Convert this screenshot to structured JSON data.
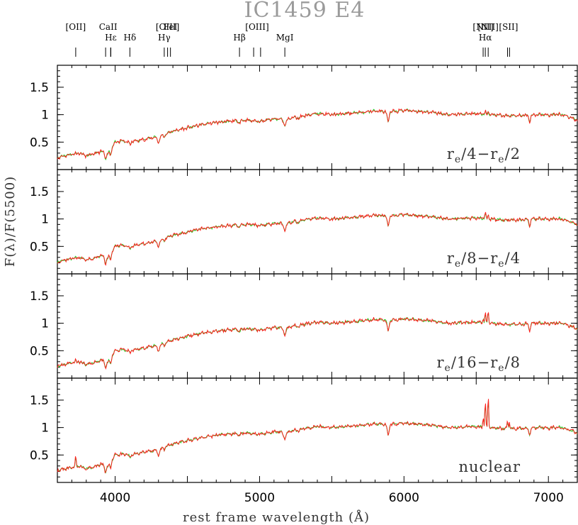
{
  "chart_data": {
    "type": "line",
    "title": "IC1459 E4",
    "xlabel": "rest frame wavelength (Å)",
    "ylabel": "F(λ)/F(5500)",
    "xlim": [
      3600,
      7200
    ],
    "ylim": [
      0,
      1.9
    ],
    "x_ticks": [
      4000,
      5000,
      6000,
      7000
    ],
    "y_ticks": [
      0.5,
      1,
      1.5
    ],
    "grid": false,
    "series_colors": {
      "observed": "#ff2020",
      "model": "#22cc22"
    },
    "line_markers": [
      {
        "label": "[OII]",
        "row": 0,
        "x": [
          3727
        ]
      },
      {
        "label": "CaII",
        "row": 0,
        "x": [
          3934,
          3969
        ]
      },
      {
        "label": "Hε",
        "row": 1,
        "x": [
          3970
        ]
      },
      {
        "label": "Hδ",
        "row": 1,
        "x": [
          4102
        ]
      },
      {
        "label": "[OIII]",
        "row": 0,
        "x": [
          4363
        ]
      },
      {
        "label": "FeI",
        "row": 0,
        "x": [
          4383
        ]
      },
      {
        "label": "Hγ",
        "row": 1,
        "x": [
          4340
        ]
      },
      {
        "label": "Hβ",
        "row": 1,
        "x": [
          4861
        ]
      },
      {
        "label": "[OIII]",
        "row": 0,
        "x": [
          4959,
          5007
        ]
      },
      {
        "label": "MgI",
        "row": 1,
        "x": [
          5175
        ]
      },
      {
        "label": "[NII]",
        "row": 0,
        "x": [
          6548
        ]
      },
      {
        "label": "Hα",
        "row": 1,
        "x": [
          6563
        ]
      },
      {
        "label": "[NII]",
        "row": 0,
        "x": [
          6583
        ]
      },
      {
        "label": "[SII]",
        "row": 0,
        "x": [
          6717,
          6731
        ]
      }
    ],
    "continuum": [
      [
        3600,
        0.22
      ],
      [
        3650,
        0.25
      ],
      [
        3700,
        0.28
      ],
      [
        3750,
        0.3
      ],
      [
        3800,
        0.25
      ],
      [
        3850,
        0.28
      ],
      [
        3900,
        0.33
      ],
      [
        3950,
        0.3
      ],
      [
        4000,
        0.5
      ],
      [
        4050,
        0.52
      ],
      [
        4100,
        0.5
      ],
      [
        4200,
        0.55
      ],
      [
        4300,
        0.6
      ],
      [
        4400,
        0.7
      ],
      [
        4500,
        0.76
      ],
      [
        4600,
        0.82
      ],
      [
        4700,
        0.86
      ],
      [
        4800,
        0.88
      ],
      [
        4900,
        0.9
      ],
      [
        5000,
        0.88
      ],
      [
        5100,
        0.92
      ],
      [
        5200,
        0.93
      ],
      [
        5300,
        0.98
      ],
      [
        5400,
        1.02
      ],
      [
        5500,
        1.0
      ],
      [
        5600,
        1.02
      ],
      [
        5700,
        1.04
      ],
      [
        5800,
        1.07
      ],
      [
        5900,
        1.05
      ],
      [
        6000,
        1.08
      ],
      [
        6100,
        1.06
      ],
      [
        6200,
        1.04
      ],
      [
        6300,
        1.0
      ],
      [
        6400,
        1.01
      ],
      [
        6500,
        1.02
      ],
      [
        6600,
        1.0
      ],
      [
        6700,
        0.98
      ],
      [
        6800,
        0.98
      ],
      [
        6900,
        1.0
      ],
      [
        7000,
        1.01
      ],
      [
        7100,
        1.0
      ],
      [
        7200,
        0.9
      ]
    ],
    "absorption": [
      [
        3934,
        0.12,
        6
      ],
      [
        3969,
        0.1,
        6
      ],
      [
        4102,
        0.04,
        6
      ],
      [
        4300,
        0.1,
        8
      ],
      [
        4340,
        0.04,
        6
      ],
      [
        4861,
        0.04,
        6
      ],
      [
        5175,
        0.12,
        10
      ],
      [
        5270,
        0.03,
        10
      ],
      [
        5890,
        0.2,
        6
      ],
      [
        6870,
        0.12,
        6
      ],
      [
        7000,
        0.02,
        20
      ]
    ],
    "panels": [
      {
        "label": "re/4–re/2",
        "sub_a": "r",
        "sub_b": "e",
        "mid": "/4−",
        "end": "/2",
        "emission": [
          [
            6563,
            0.08
          ],
          [
            6583,
            0.05
          ]
        ],
        "seed": 11
      },
      {
        "label": "re/8–re/4",
        "sub_a": "r",
        "sub_b": "e",
        "mid": "/8−",
        "end": "/4",
        "emission": [
          [
            6563,
            0.12
          ],
          [
            6583,
            0.08
          ]
        ],
        "seed": 23
      },
      {
        "label": "re/16–re/8",
        "sub_a": "r",
        "sub_b": "e",
        "mid": "/16−",
        "end": "/8",
        "emission": [
          [
            3727,
            0.05
          ],
          [
            6548,
            0.08
          ],
          [
            6563,
            0.2
          ],
          [
            6583,
            0.25
          ]
        ],
        "seed": 37
      },
      {
        "label": "nuclear",
        "emission": [
          [
            3727,
            0.18
          ],
          [
            6548,
            0.2
          ],
          [
            6563,
            0.55
          ],
          [
            6583,
            0.65
          ],
          [
            6717,
            0.15
          ],
          [
            6731,
            0.12
          ]
        ],
        "seed": 53
      }
    ]
  }
}
